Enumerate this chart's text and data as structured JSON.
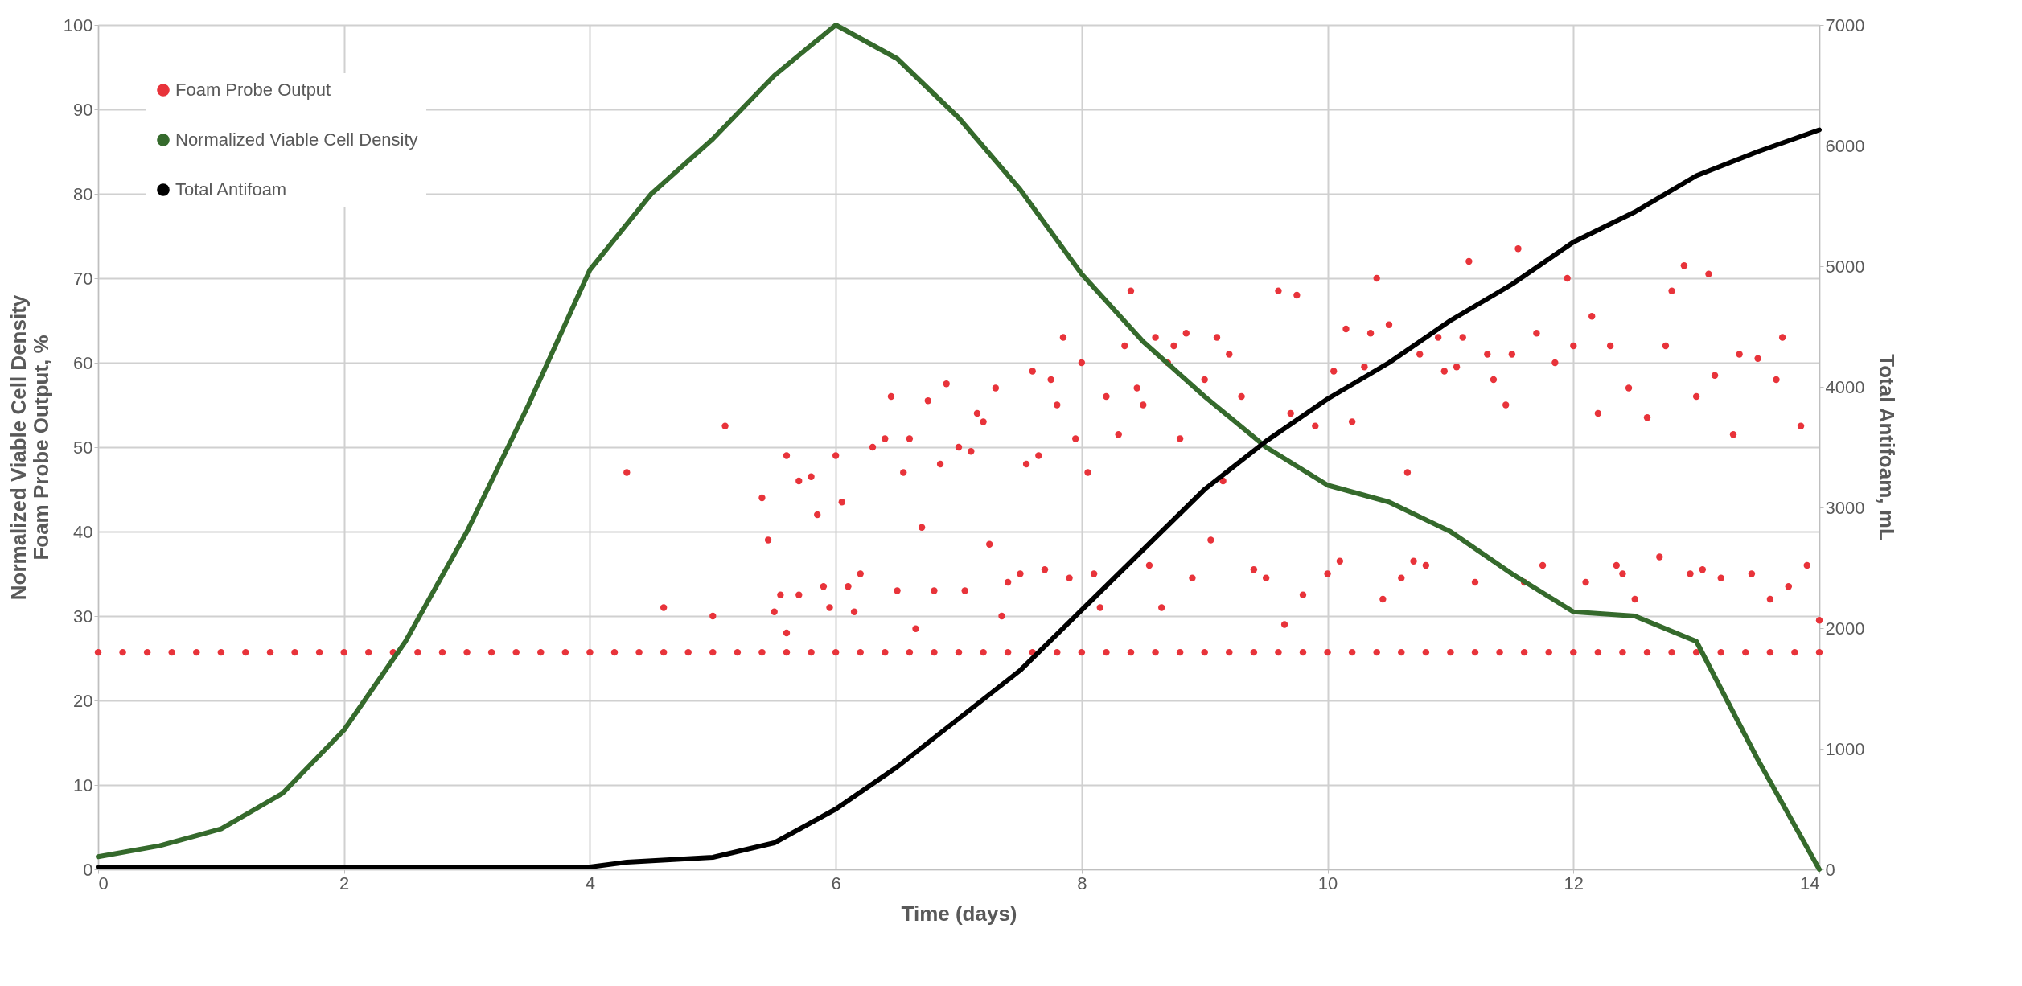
{
  "chart_data": {
    "type": "line",
    "xlabel": "Time (days)",
    "ylabel": "Normalized Viable Cell Density\nFoam Probe Output, %",
    "y2label": "Total Antifoam, mL",
    "xlim": [
      0,
      14
    ],
    "xticks": [
      0,
      2,
      4,
      6,
      8,
      10,
      12,
      14
    ],
    "ylim": [
      0,
      100
    ],
    "yticks": [
      0,
      10,
      20,
      30,
      40,
      50,
      60,
      70,
      80,
      90,
      100
    ],
    "y2lim": [
      0,
      7000
    ],
    "y2ticks": [
      0,
      1000,
      2000,
      3000,
      4000,
      5000,
      6000,
      7000
    ],
    "grid": true,
    "legend": "top left",
    "series": [
      {
        "name": "Foam Probe Output",
        "type": "scatter",
        "marker": "circle",
        "color": "#e8333a",
        "x": [
          0,
          0.2,
          0.4,
          0.6,
          0.8,
          1,
          1.2,
          1.4,
          1.6,
          1.8,
          2,
          2.2,
          2.4,
          2.6,
          2.8,
          3,
          3.2,
          3.4,
          3.6,
          3.8,
          4,
          4.2,
          4.4,
          4.6,
          4.8,
          5,
          5.2,
          5.4,
          5.6,
          5.8,
          6,
          6.2,
          6.4,
          6.6,
          6.8,
          7,
          7.2,
          7.4,
          7.6,
          7.8,
          8,
          8.2,
          8.4,
          8.6,
          8.8,
          9,
          9.2,
          9.4,
          9.6,
          9.8,
          10,
          10.2,
          10.4,
          10.6,
          10.8,
          11,
          11.2,
          11.4,
          11.6,
          11.8,
          12,
          12.2,
          12.4,
          12.6,
          12.8,
          13,
          13.2,
          13.4,
          13.6,
          13.8,
          14,
          4.3,
          4.6,
          5.0,
          5.1,
          5.4,
          5.45,
          5.5,
          5.55,
          5.6,
          5.6,
          5.7,
          5.7,
          5.8,
          5.85,
          5.9,
          5.95,
          6.0,
          6.05,
          6.1,
          6.15,
          6.2,
          6.3,
          6.4,
          6.45,
          6.5,
          6.55,
          6.6,
          6.65,
          6.7,
          6.75,
          6.8,
          6.85,
          6.9,
          7.0,
          7.05,
          7.1,
          7.15,
          7.2,
          7.25,
          7.3,
          7.35,
          7.4,
          7.5,
          7.55,
          7.6,
          7.65,
          7.7,
          7.75,
          7.8,
          7.85,
          7.9,
          7.95,
          8.0,
          8.05,
          8.1,
          8.15,
          8.2,
          8.3,
          8.35,
          8.4,
          8.45,
          8.5,
          8.55,
          8.6,
          8.65,
          8.7,
          8.75,
          8.8,
          8.85,
          8.9,
          9.0,
          9.05,
          9.1,
          9.15,
          9.2,
          9.3,
          9.4,
          9.5,
          9.6,
          9.65,
          9.7,
          9.75,
          9.8,
          9.9,
          10.0,
          10.05,
          10.1,
          10.15,
          10.2,
          10.3,
          10.35,
          10.4,
          10.45,
          10.5,
          10.6,
          10.65,
          10.7,
          10.75,
          10.8,
          10.9,
          10.95,
          11.05,
          11.1,
          11.15,
          11.2,
          11.3,
          11.35,
          11.45,
          11.5,
          11.55,
          11.6,
          11.7,
          11.75,
          11.85,
          11.95,
          12.0,
          12.1,
          12.15,
          12.2,
          12.3,
          12.35,
          12.45,
          12.5,
          12.6,
          12.7,
          12.75,
          12.8,
          12.9,
          13.0,
          13.05,
          13.1,
          13.15,
          13.3,
          13.35,
          13.45,
          13.5,
          13.6,
          13.65,
          13.7,
          13.75,
          13.85,
          13.9,
          14.0,
          13.2,
          12.95,
          12.4
        ],
        "values": [
          25.7,
          25.7,
          25.7,
          25.7,
          25.7,
          25.7,
          25.7,
          25.7,
          25.7,
          25.7,
          25.7,
          25.7,
          25.7,
          25.7,
          25.7,
          25.7,
          25.7,
          25.7,
          25.7,
          25.7,
          25.7,
          25.7,
          25.7,
          25.7,
          25.7,
          25.7,
          25.7,
          25.7,
          25.7,
          25.7,
          25.7,
          25.7,
          25.7,
          25.7,
          25.7,
          25.7,
          25.7,
          25.7,
          25.7,
          25.7,
          25.7,
          25.7,
          25.7,
          25.7,
          25.7,
          25.7,
          25.7,
          25.7,
          25.7,
          25.7,
          25.7,
          25.7,
          25.7,
          25.7,
          25.7,
          25.7,
          25.7,
          25.7,
          25.7,
          25.7,
          25.7,
          25.7,
          25.7,
          25.7,
          25.7,
          25.7,
          25.7,
          25.7,
          25.7,
          25.7,
          25.7,
          47,
          31,
          30,
          52.5,
          44,
          39,
          30.5,
          32.5,
          49,
          28,
          32.5,
          46,
          46.5,
          42,
          33.5,
          31,
          49,
          43.5,
          33.5,
          30.5,
          35,
          50,
          51,
          56,
          33,
          47,
          51,
          28.5,
          40.5,
          55.5,
          33,
          48,
          57.5,
          50,
          33,
          49.5,
          54,
          53,
          38.5,
          57,
          30,
          34,
          35,
          48,
          59,
          49,
          35.5,
          58,
          55,
          63,
          34.5,
          51,
          60,
          47,
          35,
          31,
          56,
          51.5,
          62,
          68.5,
          57,
          55,
          36,
          63,
          31,
          60,
          62,
          51,
          63.5,
          34.5,
          58,
          39,
          63,
          46,
          61,
          56,
          35.5,
          34.5,
          68.5,
          29,
          54,
          68,
          32.5,
          52.5,
          35,
          59,
          36.5,
          64,
          53,
          59.5,
          63.5,
          70,
          32,
          64.5,
          34.5,
          47,
          36.5,
          61,
          36,
          63,
          59,
          59.5,
          63,
          72,
          34,
          61,
          58,
          55,
          61,
          73.5,
          34,
          63.5,
          36,
          60,
          70,
          62,
          34,
          65.5,
          54,
          62,
          36,
          57,
          32,
          53.5,
          37,
          62,
          68.5,
          71.5,
          56,
          35.5,
          70.5,
          58.5,
          51.5,
          61,
          35,
          60.5,
          32,
          58,
          63,
          33.5,
          52.5,
          36,
          29.5,
          34.5,
          35,
          35
        ]
      },
      {
        "name": "Normalized Viable Cell Density",
        "color": "#356a2c",
        "x": [
          0,
          0.5,
          1,
          1.5,
          2,
          2.5,
          3,
          3.5,
          4,
          4.5,
          5,
          5.5,
          6,
          6.5,
          7,
          7.5,
          8,
          8.5,
          9,
          9.5,
          10,
          10.5,
          11,
          11.5,
          12,
          12.5,
          13,
          13.5,
          14
        ],
        "values": [
          1.5,
          2.8,
          4.8,
          9,
          16.5,
          27,
          40,
          55,
          71,
          80,
          86.5,
          94,
          100,
          96,
          89,
          80.5,
          70.5,
          62.5,
          56,
          50,
          45.5,
          43.5,
          40,
          35,
          30.5,
          30,
          27,
          13,
          0
        ]
      },
      {
        "name": "Total Antifoam",
        "type": "line",
        "axis": "y2",
        "color": "#000000",
        "x": [
          0,
          1,
          2,
          3,
          4,
          4.3,
          5,
          5.5,
          6,
          6.5,
          7,
          7.5,
          8,
          8.5,
          9,
          9.5,
          10,
          10.5,
          11,
          11.5,
          12,
          12.5,
          13,
          13.5,
          14
        ],
        "values": [
          20,
          20,
          20,
          20,
          20,
          60,
          100,
          220,
          500,
          850,
          1250,
          1650,
          2150,
          2650,
          3150,
          3550,
          3900,
          4200,
          4550,
          4850,
          5200,
          5450,
          5750,
          5950,
          6130
        ]
      }
    ]
  }
}
